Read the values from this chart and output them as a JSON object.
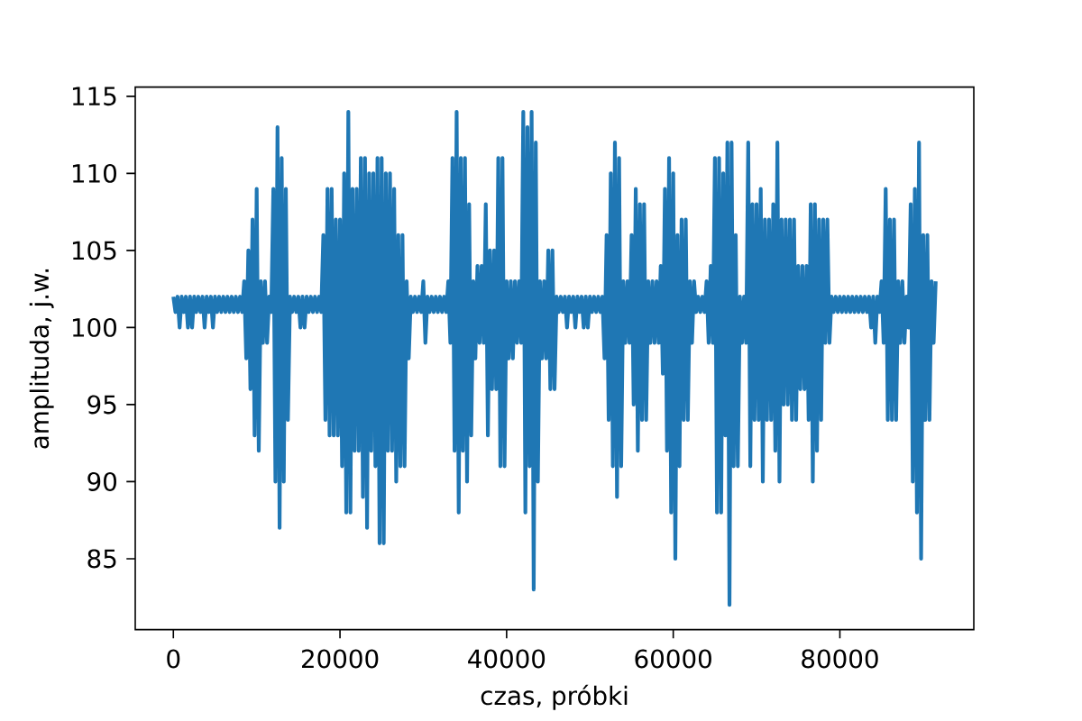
{
  "chart_data": {
    "type": "line",
    "xlabel": "czas, próbki",
    "ylabel": "amplituda, j.w.",
    "color": "#1f77b4",
    "line_style": "solid",
    "xlim": [
      -4575,
      96075
    ],
    "ylim": [
      80.4,
      115.6
    ],
    "xticks": [
      0,
      20000,
      40000,
      60000,
      80000
    ],
    "yticks": [
      85,
      90,
      95,
      100,
      105,
      110,
      115
    ],
    "x": [
      0,
      250,
      500,
      750,
      1000,
      1250,
      1500,
      1750,
      2000,
      2250,
      2500,
      2750,
      3000,
      3250,
      3500,
      3750,
      4000,
      4250,
      4500,
      4750,
      5000,
      5250,
      5500,
      5750,
      6000,
      6250,
      6500,
      6750,
      7000,
      7250,
      7500,
      7750,
      8000,
      8250,
      8500,
      8750,
      9000,
      9250,
      9500,
      9750,
      10000,
      10250,
      10500,
      10750,
      11000,
      11250,
      11500,
      11750,
      12000,
      12250,
      12500,
      12750,
      13000,
      13250,
      13500,
      13750,
      14000,
      14250,
      14500,
      14750,
      15000,
      15250,
      15500,
      15750,
      16000,
      16250,
      16500,
      16750,
      17000,
      17250,
      17500,
      17750,
      18000,
      18250,
      18500,
      18750,
      19000,
      19250,
      19500,
      19750,
      20000,
      20250,
      20500,
      20750,
      21000,
      21250,
      21500,
      21750,
      22000,
      22250,
      22500,
      22750,
      23000,
      23250,
      23500,
      23750,
      24000,
      24250,
      24500,
      24750,
      25000,
      25250,
      25500,
      25750,
      26000,
      26250,
      26500,
      26750,
      27000,
      27250,
      27500,
      27750,
      28000,
      28250,
      28500,
      28750,
      29000,
      29250,
      29500,
      29750,
      30000,
      30250,
      30500,
      30750,
      31000,
      31250,
      31500,
      31750,
      32000,
      32250,
      32500,
      32750,
      33000,
      33250,
      33500,
      33750,
      34000,
      34250,
      34500,
      34750,
      35000,
      35250,
      35500,
      35750,
      36000,
      36250,
      36500,
      36750,
      37000,
      37250,
      37500,
      37750,
      38000,
      38250,
      38500,
      38750,
      39000,
      39250,
      39500,
      39750,
      40000,
      40250,
      40500,
      40750,
      41000,
      41250,
      41500,
      41750,
      42000,
      42250,
      42500,
      42750,
      43000,
      43250,
      43500,
      43750,
      44000,
      44250,
      44500,
      44750,
      45000,
      45250,
      45500,
      45750,
      46000,
      46250,
      46500,
      46750,
      47000,
      47250,
      47500,
      47750,
      48000,
      48250,
      48500,
      48750,
      49000,
      49250,
      49500,
      49750,
      50000,
      50250,
      50500,
      50750,
      51000,
      51250,
      51500,
      51750,
      52000,
      52250,
      52500,
      52750,
      53000,
      53250,
      53500,
      53750,
      54000,
      54250,
      54500,
      54750,
      55000,
      55250,
      55500,
      55750,
      56000,
      56250,
      56500,
      56750,
      57000,
      57250,
      57500,
      57750,
      58000,
      58250,
      58500,
      58750,
      59000,
      59250,
      59500,
      59750,
      60000,
      60250,
      60500,
      60750,
      61000,
      61250,
      61500,
      61750,
      62000,
      62250,
      62500,
      62750,
      63000,
      63250,
      63500,
      63750,
      64000,
      64250,
      64500,
      64750,
      65000,
      65250,
      65500,
      65750,
      66000,
      66250,
      66500,
      66750,
      67000,
      67250,
      67500,
      67750,
      68000,
      68250,
      68500,
      68750,
      69000,
      69250,
      69500,
      69750,
      70000,
      70250,
      70500,
      70750,
      71000,
      71250,
      71500,
      71750,
      72000,
      72250,
      72500,
      72750,
      73000,
      73250,
      73500,
      73750,
      74000,
      74250,
      74500,
      74750,
      75000,
      75250,
      75500,
      75750,
      76000,
      76250,
      76500,
      76750,
      77000,
      77250,
      77500,
      77750,
      78000,
      78250,
      78500,
      78750,
      79000,
      79250,
      79500,
      79750,
      80000,
      80250,
      80500,
      80750,
      81000,
      81250,
      81500,
      81750,
      82000,
      82250,
      82500,
      82750,
      83000,
      83250,
      83500,
      83750,
      84000,
      84250,
      84500,
      84750,
      85000,
      85250,
      85500,
      85750,
      86000,
      86250,
      86500,
      86750,
      87000,
      87250,
      87500,
      87750,
      88000,
      88250,
      88500,
      88750,
      89000,
      89250,
      89500,
      89750,
      90000,
      90250,
      90500,
      90750,
      91000,
      91250,
      91500
    ],
    "values": [
      102,
      101,
      102,
      100,
      102,
      101,
      102,
      100,
      102,
      100,
      102,
      101,
      102,
      101,
      102,
      100,
      102,
      101,
      102,
      100,
      102,
      101,
      102,
      101,
      102,
      101,
      102,
      101,
      102,
      101,
      102,
      101,
      102,
      101,
      103,
      98,
      105,
      96,
      107,
      93,
      109,
      92,
      103,
      99,
      103,
      99,
      102,
      101,
      109,
      90,
      113,
      87,
      111,
      90,
      109,
      94,
      102,
      101,
      102,
      101,
      102,
      100,
      102,
      100,
      102,
      101,
      102,
      101,
      102,
      101,
      102,
      101,
      106,
      94,
      109,
      93,
      109,
      93,
      107,
      93,
      107,
      91,
      110,
      88,
      114,
      88,
      109,
      92,
      109,
      92,
      111,
      89,
      111,
      87,
      110,
      92,
      110,
      91,
      111,
      86,
      111,
      86,
      110,
      92,
      110,
      92,
      109,
      90,
      106,
      91,
      106,
      91,
      103,
      98,
      102,
      101,
      102,
      101,
      102,
      101,
      103,
      99,
      102,
      101,
      102,
      101,
      102,
      101,
      102,
      101,
      102,
      101,
      103,
      99,
      111,
      92,
      114,
      88,
      111,
      92,
      111,
      90,
      108,
      93,
      103,
      98,
      104,
      99,
      104,
      99,
      108,
      93,
      105,
      96,
      105,
      96,
      111,
      91,
      111,
      91,
      103,
      98,
      103,
      98,
      103,
      99,
      103,
      99,
      114,
      88,
      113,
      91,
      114,
      83,
      112,
      90,
      103,
      98,
      103,
      98,
      105,
      96,
      105,
      96,
      102,
      101,
      102,
      101,
      102,
      100,
      102,
      101,
      102,
      100,
      102,
      101,
      102,
      100,
      102,
      100,
      102,
      101,
      102,
      101,
      102,
      101,
      102,
      98,
      106,
      94,
      110,
      91,
      112,
      89,
      111,
      91,
      103,
      99,
      103,
      99,
      106,
      95,
      109,
      92,
      108,
      94,
      108,
      94,
      103,
      99,
      103,
      99,
      103,
      99,
      104,
      97,
      109,
      92,
      111,
      88,
      110,
      85,
      106,
      91,
      107,
      94,
      107,
      94,
      103,
      99,
      103,
      101,
      102,
      101,
      102,
      101,
      103,
      99,
      104,
      99,
      111,
      88,
      111,
      88,
      110,
      93,
      112,
      82,
      112,
      91,
      106,
      91,
      102,
      99,
      102,
      99,
      112,
      91,
      108,
      94,
      108,
      94,
      109,
      90,
      107,
      94,
      107,
      94,
      108,
      92,
      112,
      90,
      107,
      95,
      107,
      95,
      107,
      94,
      107,
      94,
      104,
      96,
      104,
      96,
      104,
      94,
      108,
      90,
      108,
      92,
      107,
      94,
      107,
      99,
      107,
      99,
      102,
      101,
      102,
      101,
      102,
      101,
      102,
      101,
      102,
      101,
      102,
      101,
      102,
      101,
      102,
      101,
      102,
      101,
      102,
      100,
      102,
      99,
      102,
      101,
      103,
      99,
      109,
      94,
      107,
      94,
      107,
      94,
      103,
      99,
      103,
      99,
      102,
      100,
      108,
      90,
      109,
      88,
      112,
      85,
      106,
      94,
      106,
      94,
      103,
      99,
      103
    ]
  }
}
